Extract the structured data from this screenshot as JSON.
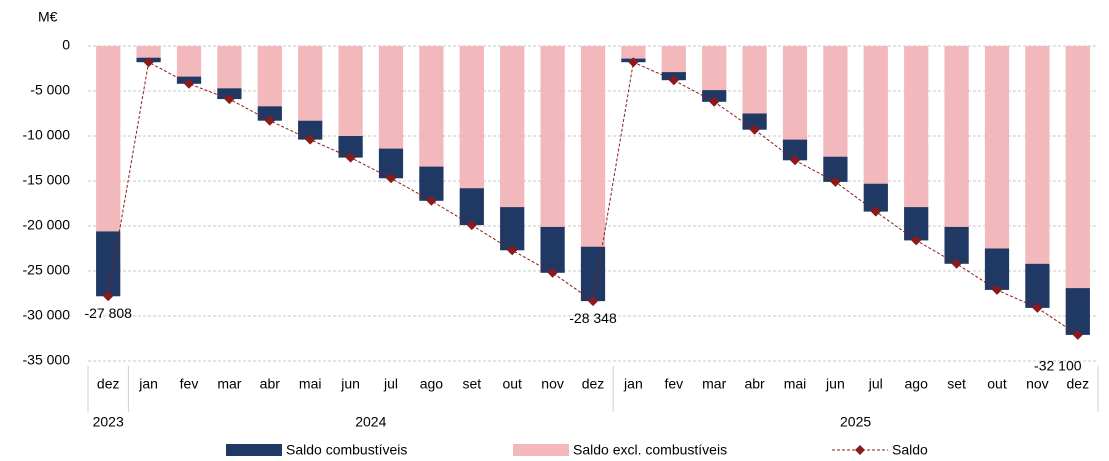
{
  "chart_data": {
    "type": "stacked-bar-line",
    "y_label": "M€",
    "categories": [
      "dez",
      "jan",
      "fev",
      "mar",
      "abr",
      "mai",
      "jun",
      "jul",
      "ago",
      "set",
      "out",
      "nov",
      "dez",
      "jan",
      "fev",
      "mar",
      "abr",
      "mai",
      "jun",
      "jul",
      "ago",
      "set",
      "out",
      "nov",
      "dez"
    ],
    "groups": [
      {
        "label": "2023",
        "count": 1
      },
      {
        "label": "2024",
        "count": 12
      },
      {
        "label": "2025",
        "count": 12
      }
    ],
    "series": [
      {
        "name": "Saldo combustíveis",
        "type": "bar",
        "color": "#1f3864",
        "values": [
          -7208,
          -500,
          -800,
          -1200,
          -1600,
          -2100,
          -2400,
          -3300,
          -3800,
          -4100,
          -4800,
          -5100,
          -6048,
          -400,
          -900,
          -1300,
          -1800,
          -2300,
          -2800,
          -3100,
          -3700,
          -4100,
          -4600,
          -4900,
          -5200
        ]
      },
      {
        "name": "Saldo excl. combustíveis",
        "type": "bar",
        "color": "#f2b8bb",
        "values": [
          -20600,
          -1300,
          -3400,
          -4700,
          -6700,
          -8300,
          -10000,
          -11400,
          -13400,
          -15800,
          -17900,
          -20100,
          -22300,
          -1400,
          -2900,
          -4900,
          -7500,
          -10400,
          -12300,
          -15300,
          -17900,
          -20100,
          -22500,
          -24200,
          -26900
        ]
      },
      {
        "name": "Saldo",
        "type": "line",
        "color": "#8b1a1a",
        "values": [
          -27808,
          -1800,
          -4200,
          -5900,
          -8300,
          -10400,
          -12400,
          -14700,
          -17200,
          -19900,
          -22700,
          -25200,
          -28348,
          -1800,
          -3800,
          -6200,
          -9300,
          -12700,
          -15100,
          -18400,
          -21600,
          -24200,
          -27100,
          -29100,
          -32100
        ],
        "value_labels": [
          "-27 808",
          null,
          null,
          null,
          null,
          null,
          null,
          null,
          null,
          null,
          null,
          null,
          "-28 348",
          null,
          null,
          null,
          null,
          null,
          null,
          null,
          null,
          null,
          null,
          null,
          "-32 100"
        ]
      }
    ],
    "ylim": [
      -35000,
      0
    ],
    "yticks": [
      0,
      {
        "value": -5000,
        "label": "-5 000"
      },
      {
        "value": -10000,
        "label": "-10 000"
      },
      {
        "value": -15000,
        "label": "-15 000"
      },
      {
        "value": -20000,
        "label": "-20 000"
      },
      {
        "value": -25000,
        "label": "-25 000"
      },
      {
        "value": -30000,
        "label": "-30 000"
      },
      {
        "value": -35000,
        "label": "-35 000"
      }
    ],
    "grid": true
  }
}
